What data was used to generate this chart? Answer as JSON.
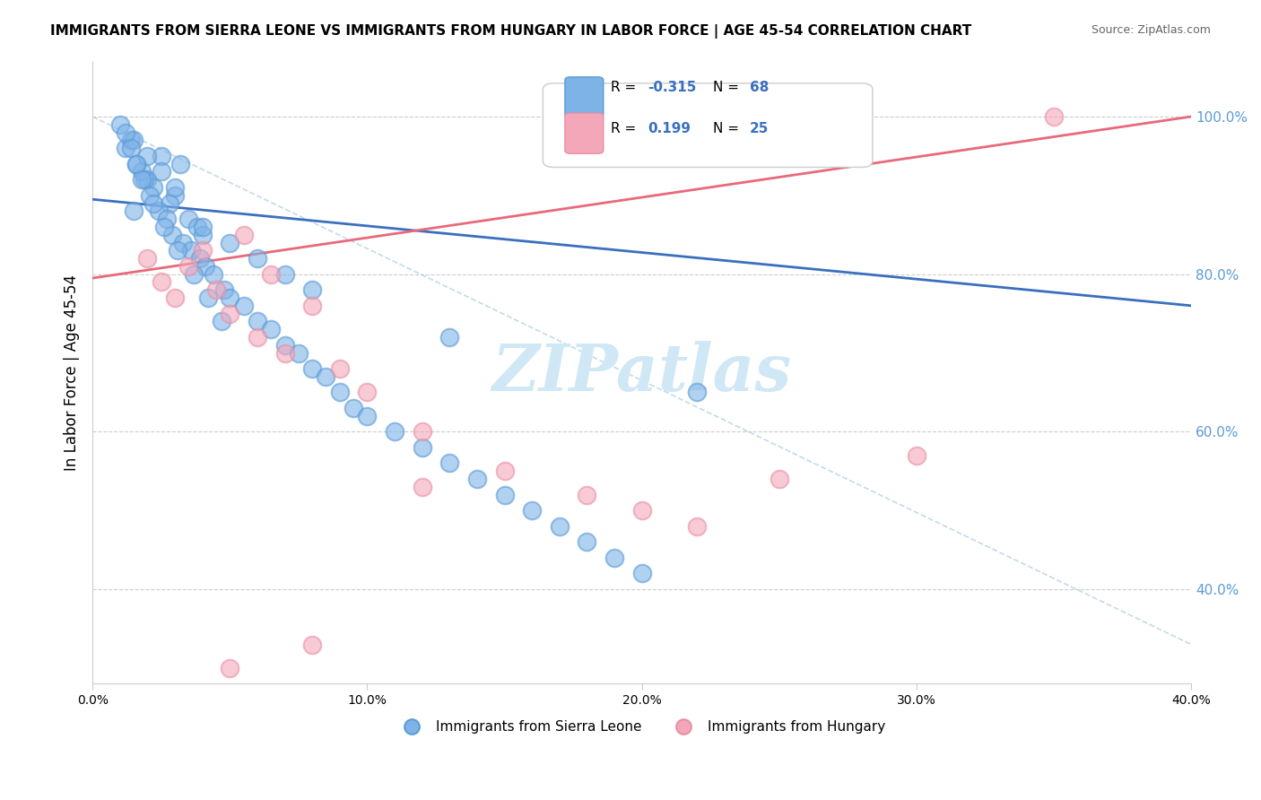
{
  "title": "IMMIGRANTS FROM SIERRA LEONE VS IMMIGRANTS FROM HUNGARY IN LABOR FORCE | AGE 45-54 CORRELATION CHART",
  "source": "Source: ZipAtlas.com",
  "ylabel": "In Labor Force | Age 45-54",
  "x_min": 0.0,
  "x_max": 0.4,
  "y_min": 0.28,
  "y_max": 1.07,
  "R_blue": -0.315,
  "N_blue": 68,
  "R_pink": 0.199,
  "N_pink": 25,
  "color_blue": "#7eb3e8",
  "color_pink": "#f4a7b9",
  "color_blue_dark": "#5b9bd5",
  "color_pink_dark": "#e88fa4",
  "trend_blue_color": "#3a6fbf",
  "trend_pink_color": "#e8697a",
  "watermark_color": "#d0e8f5",
  "legend_label_blue": "Immigrants from Sierra Leone",
  "legend_label_pink": "Immigrants from Hungary",
  "blue_scatter_x": [
    0.02,
    0.025,
    0.03,
    0.015,
    0.018,
    0.022,
    0.028,
    0.032,
    0.035,
    0.038,
    0.04,
    0.012,
    0.014,
    0.016,
    0.019,
    0.021,
    0.024,
    0.027,
    0.029,
    0.033,
    0.036,
    0.039,
    0.041,
    0.044,
    0.048,
    0.05,
    0.055,
    0.06,
    0.065,
    0.07,
    0.075,
    0.08,
    0.085,
    0.09,
    0.095,
    0.1,
    0.11,
    0.12,
    0.13,
    0.14,
    0.15,
    0.16,
    0.17,
    0.18,
    0.19,
    0.2,
    0.22,
    0.13,
    0.04,
    0.05,
    0.06,
    0.07,
    0.08,
    0.03,
    0.025,
    0.02,
    0.015,
    0.01,
    0.012,
    0.014,
    0.016,
    0.018,
    0.022,
    0.026,
    0.031,
    0.037,
    0.042,
    0.047
  ],
  "blue_scatter_y": [
    0.92,
    0.95,
    0.9,
    0.88,
    0.93,
    0.91,
    0.89,
    0.94,
    0.87,
    0.86,
    0.85,
    0.96,
    0.97,
    0.94,
    0.92,
    0.9,
    0.88,
    0.87,
    0.85,
    0.84,
    0.83,
    0.82,
    0.81,
    0.8,
    0.78,
    0.77,
    0.76,
    0.74,
    0.73,
    0.71,
    0.7,
    0.68,
    0.67,
    0.65,
    0.63,
    0.62,
    0.6,
    0.58,
    0.56,
    0.54,
    0.52,
    0.5,
    0.48,
    0.46,
    0.44,
    0.42,
    0.65,
    0.72,
    0.86,
    0.84,
    0.82,
    0.8,
    0.78,
    0.91,
    0.93,
    0.95,
    0.97,
    0.99,
    0.98,
    0.96,
    0.94,
    0.92,
    0.89,
    0.86,
    0.83,
    0.8,
    0.77,
    0.74
  ],
  "pink_scatter_x": [
    0.02,
    0.025,
    0.03,
    0.035,
    0.04,
    0.045,
    0.05,
    0.055,
    0.06,
    0.065,
    0.07,
    0.08,
    0.09,
    0.1,
    0.12,
    0.15,
    0.18,
    0.2,
    0.22,
    0.25,
    0.3,
    0.35,
    0.12,
    0.08,
    0.05
  ],
  "pink_scatter_y": [
    0.82,
    0.79,
    0.77,
    0.81,
    0.83,
    0.78,
    0.75,
    0.85,
    0.72,
    0.8,
    0.7,
    0.76,
    0.68,
    0.65,
    0.6,
    0.55,
    0.52,
    0.5,
    0.48,
    0.54,
    0.57,
    1.0,
    0.53,
    0.33,
    0.3
  ],
  "blue_trend_x0": 0.0,
  "blue_trend_y0": 0.895,
  "blue_trend_x1": 0.4,
  "blue_trend_y1": 0.76,
  "pink_trend_x0": 0.0,
  "pink_trend_y0": 0.795,
  "pink_trend_x1": 0.4,
  "pink_trend_y1": 1.0,
  "diag_line_x0": 0.0,
  "diag_line_y0": 1.0,
  "diag_line_x1": 0.4,
  "diag_line_y1": 0.33
}
